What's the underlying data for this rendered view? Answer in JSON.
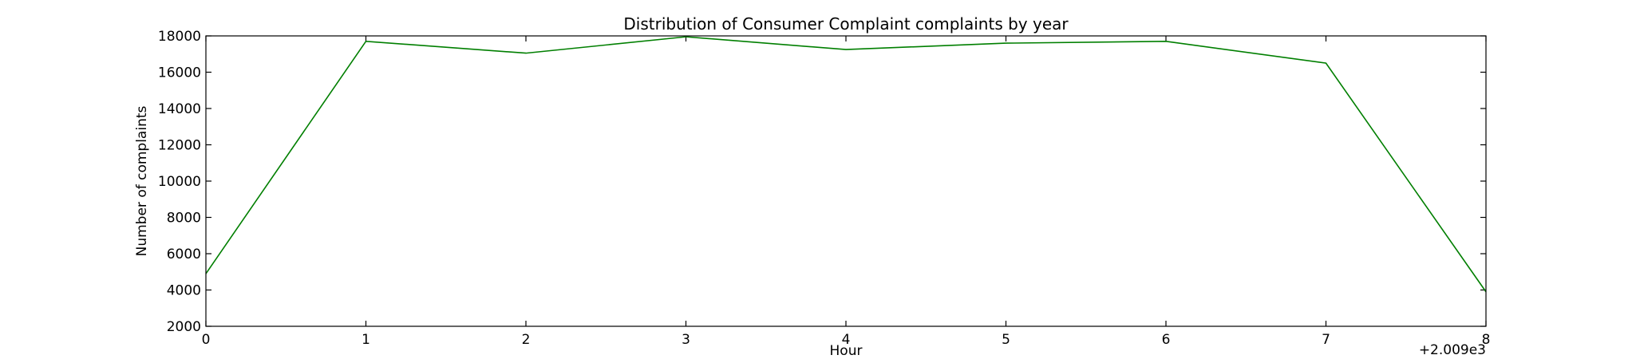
{
  "chart_data": {
    "type": "line",
    "title": "Distribution of  Consumer Complaint complaints by year",
    "xlabel": "Hour",
    "ylabel": "Number of complaints",
    "x_offset_label": "+2.009e3",
    "xlim": [
      0,
      8
    ],
    "ylim": [
      2000,
      18000
    ],
    "x_ticks": [
      0,
      1,
      2,
      3,
      4,
      5,
      6,
      7,
      8
    ],
    "x_tick_labels": [
      "0",
      "1",
      "2",
      "3",
      "4",
      "5",
      "6",
      "7",
      "8"
    ],
    "y_ticks": [
      2000,
      4000,
      6000,
      8000,
      10000,
      12000,
      14000,
      16000,
      18000
    ],
    "y_tick_labels": [
      "2000",
      "4000",
      "6000",
      "8000",
      "10000",
      "12000",
      "14000",
      "16000",
      "18000"
    ],
    "grid": false,
    "series": [
      {
        "color": "#007f00",
        "x": [
          0,
          1,
          2,
          3,
          4,
          5,
          6,
          7,
          8
        ],
        "values": [
          4900,
          17700,
          17050,
          17950,
          17250,
          17600,
          17700,
          16500,
          3900
        ]
      }
    ]
  }
}
